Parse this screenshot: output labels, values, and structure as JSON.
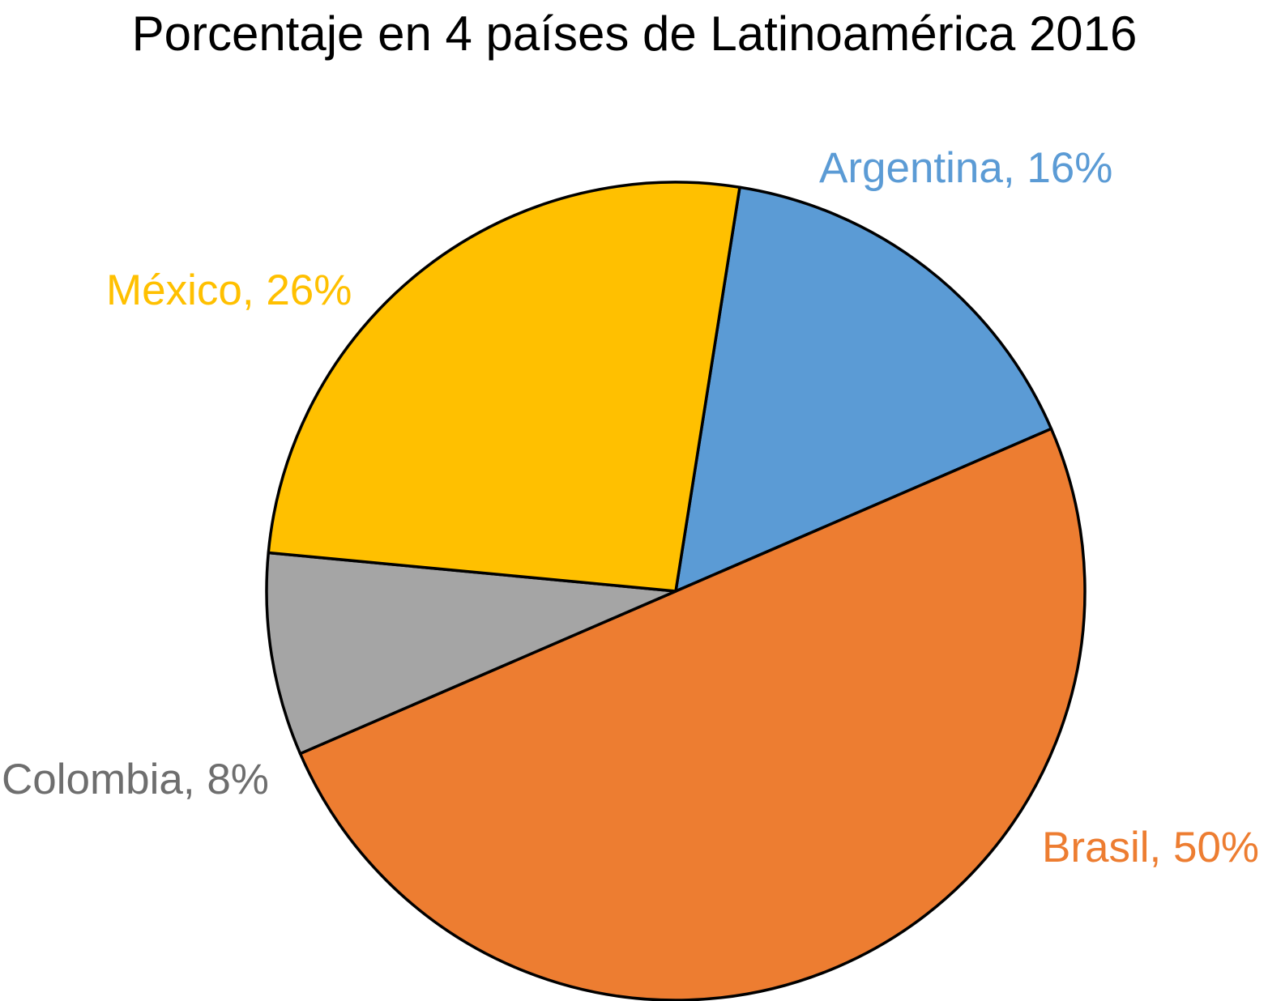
{
  "chart_data": {
    "type": "pie",
    "title": "Porcentaje en 4 países de Latinoamérica 2016",
    "slices": [
      {
        "label": "Argentina, 16%",
        "name": "Argentina",
        "value": 16,
        "color": "#5B9BD5"
      },
      {
        "label": "Brasil, 50%",
        "name": "Brasil",
        "value": 50,
        "color": "#ED7D31"
      },
      {
        "label": "Colombia, 8%",
        "name": "Colombia",
        "value": 8,
        "color": "#A5A5A5"
      },
      {
        "label": "México, 26%",
        "name": "México",
        "value": 26,
        "color": "#FFC000"
      }
    ],
    "start_angle_deg": 9,
    "direction": "clockwise",
    "legend": "none",
    "label_placement": "outside"
  }
}
